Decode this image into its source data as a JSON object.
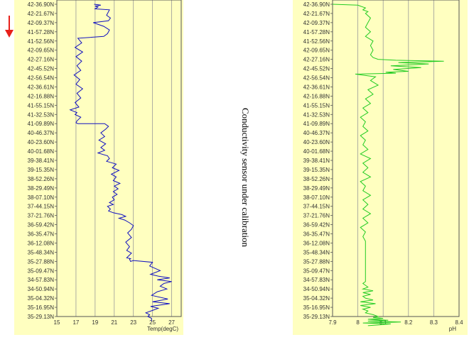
{
  "annotation": "Conductivity sensor under calibration",
  "direction_arrow_color": "#e8201a",
  "chart_data": [
    {
      "type": "line",
      "xlabel": "Temp(degC)",
      "ylabel": "",
      "xlim": [
        15,
        28
      ],
      "xticks": [
        15,
        17,
        19,
        21,
        23,
        25,
        27
      ],
      "grid": true,
      "background": "#ffffc0",
      "yticks": [
        "42-36.90N",
        "42-21.67N",
        "42-09.37N",
        "41-57.28N",
        "41-52.56N",
        "42-09.65N",
        "42-27.16N",
        "42-45.52N",
        "42-56.54N",
        "42-36.61N",
        "42-16.88N",
        "41-55.15N",
        "41-32.53N",
        "41-09.89N",
        "40-46.37N",
        "40-23.60N",
        "40-01.68N",
        "39-38.41N",
        "39-15.35N",
        "38-52.26N",
        "38-29.49N",
        "38-07.10N",
        "37-44.15N",
        "37-21.76N",
        "36-59.42N",
        "36-35.47N",
        "36-12.08N",
        "35-48.34N",
        "35-27.88N",
        "35-09.47N",
        "34-57.83N",
        "34-50.94N",
        "35-04.32N",
        "35-16.95N",
        "35-29.13N"
      ],
      "series": [
        {
          "color": "#1010c0",
          "x": [
            18.9,
            19.6,
            19.0,
            19.3,
            19.0,
            20.5,
            20.4,
            20.2,
            20.6,
            20.4,
            18.8,
            19.9,
            20.5,
            20.3,
            19.9,
            17.2,
            17.6,
            16.9,
            17.7,
            17.0,
            17.6,
            17.1,
            17.5,
            16.8,
            17.4,
            17.0,
            17.7,
            17.1,
            17.5,
            16.9,
            17.3,
            16.4,
            17.1,
            16.9,
            17.5,
            17.1,
            17.0,
            17.2,
            20.0,
            20.4,
            20.1,
            19.6,
            20.0,
            19.4,
            20.1,
            19.6,
            20.0,
            19.3,
            20.3,
            20.5,
            20.2,
            21.2,
            20.8,
            21.5,
            20.7,
            21.2,
            20.9,
            21.6,
            21.0,
            21.4,
            20.9,
            21.3,
            20.8,
            21.0,
            20.5,
            20.9,
            20.3,
            20.6,
            20.4,
            20.9,
            21.8,
            22.2,
            21.5,
            22.1,
            22.6,
            23.0,
            22.8,
            22.4,
            22.8,
            22.2,
            22.6,
            22.3,
            22.8,
            22.5,
            22.3,
            22.7,
            22.6,
            22.7,
            23.0,
            25.0,
            24.7,
            25.8,
            24.8,
            25.6,
            26.8,
            25.5,
            27.0,
            26.2,
            25.8,
            26.5,
            25.5,
            24.9,
            26.6,
            25.0,
            26.8,
            24.8,
            25.6,
            25.1,
            24.3,
            24.7,
            24.5,
            24.9,
            24.9
          ],
          "y": [
            0.0,
            0.1,
            0.2,
            0.3,
            0.5,
            0.6,
            0.8,
            1.2,
            1.5,
            1.8,
            2.0,
            2.4,
            2.8,
            3.2,
            3.5,
            3.7,
            4.2,
            4.7,
            5.2,
            5.7,
            6.2,
            6.7,
            7.2,
            7.7,
            8.2,
            8.7,
            9.2,
            9.7,
            10.2,
            10.7,
            11.2,
            11.5,
            11.8,
            12.0,
            12.3,
            12.7,
            12.9,
            13.0,
            13.0,
            13.3,
            13.6,
            14.0,
            14.4,
            14.8,
            15.2,
            15.6,
            15.9,
            16.2,
            16.5,
            16.8,
            17.1,
            17.4,
            17.8,
            18.1,
            18.5,
            18.8,
            19.2,
            19.5,
            19.8,
            20.1,
            20.4,
            20.7,
            21.0,
            21.3,
            21.6,
            21.8,
            22.0,
            22.3,
            22.5,
            22.7,
            22.9,
            23.1,
            23.3,
            23.5,
            23.8,
            24.1,
            24.5,
            24.9,
            25.4,
            25.9,
            26.4,
            26.8,
            27.1,
            27.4,
            27.6,
            27.7,
            27.75,
            28.0,
            27.9,
            28.1,
            28.5,
            29.0,
            29.4,
            29.6,
            29.8,
            30.0,
            30.2,
            30.4,
            30.7,
            31.0,
            31.3,
            31.7,
            32.1,
            32.4,
            32.6,
            32.9,
            33.1,
            33.3,
            33.6,
            33.8,
            34.0,
            34.2,
            34.5
          ]
        }
      ]
    },
    {
      "type": "line",
      "xlabel": "pH",
      "ylabel": "",
      "xlim": [
        7.9,
        8.4
      ],
      "xticks": [
        7.9,
        8,
        8.1,
        8.2,
        8.3,
        8.4
      ],
      "grid": true,
      "background": "#ffffc0",
      "yticks": [
        "42-36.90N",
        "42-21.67N",
        "42-09.37N",
        "41-57.28N",
        "41-52.56N",
        "42-09.65N",
        "42-27.16N",
        "42-45.52N",
        "42-56.54N",
        "42-36.61N",
        "42-16.88N",
        "41-55.15N",
        "41-32.53N",
        "41-09.89N",
        "40-46.37N",
        "40-23.60N",
        "40-01.68N",
        "39-38.41N",
        "39-15.35N",
        "38-52.26N",
        "38-29.49N",
        "38-07.10N",
        "37-44.15N",
        "37-21.76N",
        "36-59.42N",
        "36-35.47N",
        "36-12.08N",
        "35-48.34N",
        "35-27.88N",
        "35-09.47N",
        "34-57.83N",
        "34-50.94N",
        "35-04.32N",
        "35-16.95N",
        "35-29.13N"
      ],
      "series": [
        {
          "color": "#22cc22",
          "x": [
            7.9,
            8.0,
            8.01,
            8.03,
            8.02,
            8.04,
            8.03,
            8.05,
            8.04,
            8.03,
            8.05,
            8.03,
            8.06,
            8.05,
            8.06,
            8.05,
            8.06,
            8.08,
            8.15,
            8.34,
            8.16,
            8.28,
            8.13,
            8.25,
            8.14,
            8.2,
            8.11,
            8.15,
            7.99,
            8.07,
            8.05,
            8.08,
            8.04,
            8.06,
            8.03,
            8.05,
            8.02,
            8.04,
            8.01,
            8.03,
            8.02,
            8.04,
            8.01,
            8.03,
            8.02,
            8.04,
            8.01,
            8.05,
            8.02,
            8.04,
            8.02,
            8.05,
            8.01,
            8.03,
            8.02,
            8.05,
            8.02,
            8.04,
            8.02,
            8.05,
            8.02,
            8.04,
            8.01,
            8.03,
            8.02,
            8.03,
            8.03,
            8.03,
            8.03,
            8.03,
            8.03,
            8.03,
            8.03,
            8.03,
            8.03,
            8.03,
            8.03,
            8.03,
            8.03,
            8.03,
            8.03,
            8.02,
            8.03,
            8.04,
            8.02,
            8.06,
            8.02,
            8.05,
            8.02,
            8.03,
            8.06,
            8.01,
            8.07,
            8.01,
            8.05,
            8.02,
            8.04,
            8.03,
            8.06,
            8.08,
            8.06,
            8.1,
            8.04,
            8.12,
            8.04,
            8.17,
            8.02,
            8.13,
            8.09,
            8.04
          ],
          "y": [
            0.0,
            0.1,
            0.2,
            0.4,
            0.6,
            0.8,
            1.0,
            1.5,
            2.0,
            2.5,
            3.0,
            3.5,
            4.0,
            4.5,
            5.0,
            5.5,
            5.8,
            6.0,
            6.1,
            6.2,
            6.35,
            6.5,
            6.7,
            6.9,
            7.1,
            7.3,
            7.4,
            7.5,
            7.6,
            7.9,
            8.3,
            8.8,
            9.3,
            9.8,
            10.3,
            10.8,
            11.3,
            11.8,
            12.3,
            12.8,
            13.3,
            13.8,
            14.3,
            14.8,
            15.3,
            15.8,
            16.3,
            16.8,
            17.3,
            17.8,
            18.3,
            18.8,
            19.3,
            19.8,
            20.3,
            20.8,
            21.3,
            21.8,
            22.3,
            22.8,
            23.3,
            23.8,
            24.3,
            24.8,
            25.3,
            25.8,
            26.0,
            26.5,
            27.0,
            27.5,
            28.0,
            28.4,
            28.6,
            28.8,
            29.0,
            29.2,
            29.4,
            29.6,
            29.8,
            30.0,
            30.2,
            30.4,
            30.6,
            30.8,
            31.0,
            31.2,
            31.4,
            31.6,
            31.8,
            32.0,
            32.2,
            32.4,
            32.6,
            32.8,
            33.0,
            33.2,
            33.4,
            33.6,
            33.8,
            34.0,
            34.1,
            34.2,
            34.3,
            34.4,
            34.5,
            34.6,
            34.7,
            34.8,
            34.9,
            35.0
          ]
        }
      ]
    }
  ]
}
